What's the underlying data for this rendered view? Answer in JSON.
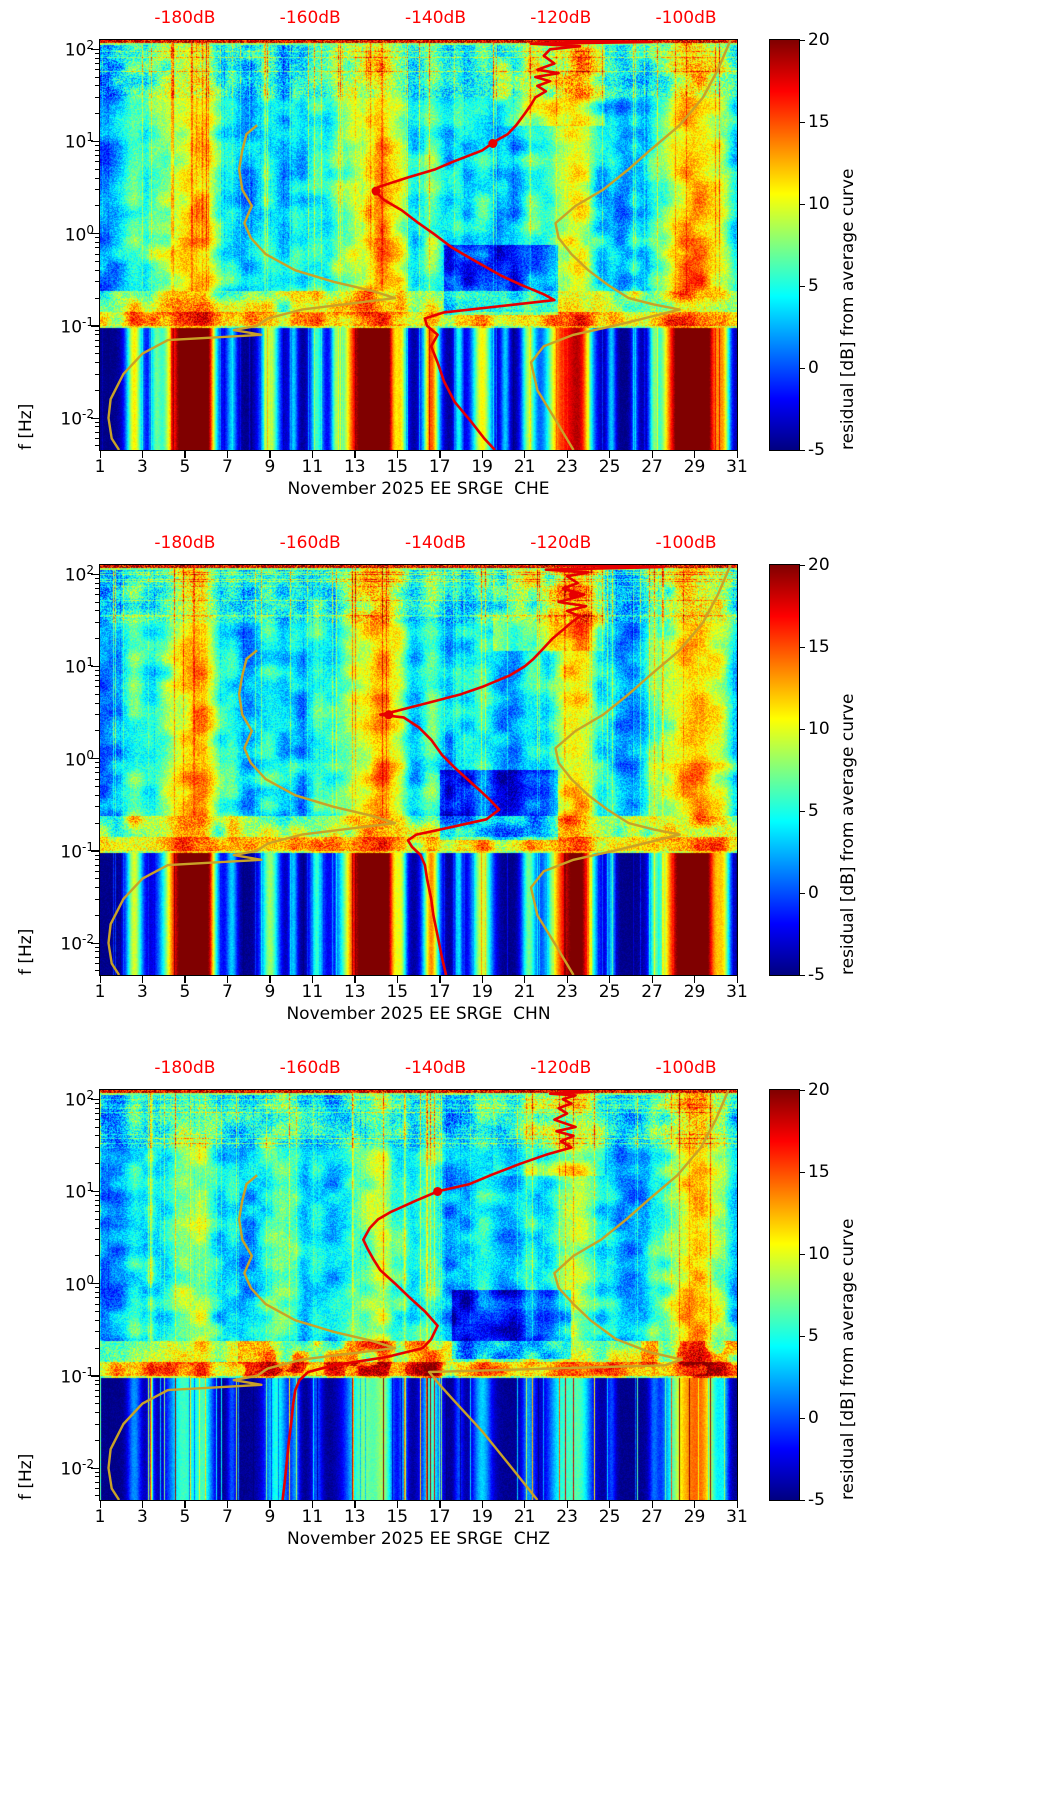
{
  "figure": {
    "colors": {
      "red_curve": "#e60000",
      "yellow_curve": "#c9a227",
      "top_axis_text": "#ff0000",
      "colorbar_low": "#000080",
      "colorbar_high": "#800000"
    }
  },
  "overlay_curves": {
    "nlnm": [
      [
        0.0045,
        1.9
      ],
      [
        0.006,
        1.55
      ],
      [
        0.01,
        1.4
      ],
      [
        0.016,
        1.5
      ],
      [
        0.03,
        2.1
      ],
      [
        0.05,
        3.0
      ],
      [
        0.07,
        4.2
      ],
      [
        0.08,
        8.6
      ],
      [
        0.09,
        7.3
      ],
      [
        0.1,
        8.4
      ],
      [
        0.12,
        8.9
      ],
      [
        0.15,
        10.5
      ],
      [
        0.2,
        14.9
      ],
      [
        0.24,
        13.8
      ],
      [
        0.3,
        12.0
      ],
      [
        0.4,
        10.2
      ],
      [
        0.6,
        8.8
      ],
      [
        0.9,
        8.1
      ],
      [
        1.3,
        7.8
      ],
      [
        2.0,
        8.15
      ],
      [
        3.0,
        7.7
      ],
      [
        5.0,
        7.55
      ],
      [
        8.0,
        7.7
      ],
      [
        12.0,
        7.9
      ],
      [
        15.0,
        8.4
      ]
    ],
    "nhnm": [
      [
        0.0045,
        23.3
      ],
      [
        0.01,
        22.4
      ],
      [
        0.02,
        21.6
      ],
      [
        0.04,
        21.3
      ],
      [
        0.06,
        21.9
      ],
      [
        0.08,
        23.3
      ],
      [
        0.1,
        25.2
      ],
      [
        0.12,
        26.6
      ],
      [
        0.15,
        28.3
      ],
      [
        0.17,
        27.1
      ],
      [
        0.2,
        25.9
      ],
      [
        0.28,
        24.9
      ],
      [
        0.4,
        24.0
      ],
      [
        0.6,
        23.2
      ],
      [
        0.9,
        22.6
      ],
      [
        1.3,
        22.45
      ],
      [
        2.0,
        23.4
      ],
      [
        3.0,
        24.7
      ],
      [
        5.0,
        25.9
      ],
      [
        8.0,
        26.9
      ],
      [
        15.0,
        28.3
      ],
      [
        30.0,
        29.4
      ],
      [
        60.0,
        30.1
      ],
      [
        126.0,
        30.7
      ]
    ],
    "nhnm_chz": [
      [
        0.0045,
        21.6
      ],
      [
        0.01,
        20.4
      ],
      [
        0.025,
        19.0
      ],
      [
        0.05,
        17.8
      ],
      [
        0.08,
        17.0
      ],
      [
        0.11,
        16.5
      ],
      [
        0.13,
        27.6
      ],
      [
        0.15,
        28.4
      ],
      [
        0.18,
        26.9
      ],
      [
        0.25,
        25.3
      ],
      [
        0.4,
        24.1
      ],
      [
        0.6,
        23.3
      ],
      [
        0.9,
        22.6
      ],
      [
        1.3,
        22.4
      ],
      [
        2.0,
        23.3
      ],
      [
        3.0,
        24.6
      ],
      [
        5.0,
        25.8
      ],
      [
        8.0,
        26.8
      ],
      [
        15.0,
        28.2
      ],
      [
        30.0,
        29.3
      ],
      [
        60.0,
        30.0
      ],
      [
        126.0,
        30.6
      ]
    ],
    "red_che": [
      [
        126,
        21.6
      ],
      [
        120,
        27.0
      ],
      [
        115,
        21.3
      ],
      [
        108,
        23.6
      ],
      [
        100,
        22.2
      ],
      [
        85,
        21.9
      ],
      [
        70,
        22.4
      ],
      [
        60,
        21.6
      ],
      [
        55,
        22.6
      ],
      [
        50,
        21.5
      ],
      [
        45,
        22.2
      ],
      [
        40,
        21.6
      ],
      [
        35,
        22.0
      ],
      [
        30,
        21.5
      ],
      [
        25,
        21.3
      ],
      [
        20,
        21.0
      ],
      [
        15,
        20.6
      ],
      [
        12,
        20.2
      ],
      [
        10,
        19.6
      ],
      [
        8,
        19.0
      ],
      [
        6,
        17.6
      ],
      [
        5,
        16.8
      ],
      [
        4,
        15.4
      ],
      [
        3.2,
        14.1
      ],
      [
        2.8,
        14.0
      ],
      [
        2.3,
        14.4
      ],
      [
        1.8,
        15.2
      ],
      [
        1.3,
        16.0
      ],
      [
        1.0,
        16.7
      ],
      [
        0.7,
        17.6
      ],
      [
        0.5,
        18.7
      ],
      [
        0.35,
        19.9
      ],
      [
        0.28,
        20.8
      ],
      [
        0.22,
        21.9
      ],
      [
        0.19,
        22.4
      ],
      [
        0.16,
        19.5
      ],
      [
        0.14,
        17.2
      ],
      [
        0.12,
        16.3
      ],
      [
        0.1,
        16.4
      ],
      [
        0.08,
        16.9
      ],
      [
        0.06,
        16.6
      ],
      [
        0.04,
        16.9
      ],
      [
        0.025,
        17.2
      ],
      [
        0.015,
        17.7
      ],
      [
        0.009,
        18.5
      ],
      [
        0.006,
        19.1
      ],
      [
        0.0045,
        19.6
      ]
    ],
    "red_chn": [
      [
        126,
        22.5
      ],
      [
        120,
        27.5
      ],
      [
        112,
        22.0
      ],
      [
        105,
        24.0
      ],
      [
        95,
        23.0
      ],
      [
        80,
        23.5
      ],
      [
        70,
        22.8
      ],
      [
        60,
        23.8
      ],
      [
        50,
        22.6
      ],
      [
        45,
        23.9
      ],
      [
        40,
        23.0
      ],
      [
        35,
        23.6
      ],
      [
        30,
        23.2
      ],
      [
        25,
        22.8
      ],
      [
        20,
        22.3
      ],
      [
        15,
        21.8
      ],
      [
        12,
        21.4
      ],
      [
        10,
        21.0
      ],
      [
        8,
        20.3
      ],
      [
        6,
        19.0
      ],
      [
        5,
        18.0
      ],
      [
        4,
        16.4
      ],
      [
        3.3,
        15.0
      ],
      [
        3.0,
        14.2
      ],
      [
        2.8,
        15.3
      ],
      [
        2.2,
        16.0
      ],
      [
        1.6,
        16.6
      ],
      [
        1.1,
        17.1
      ],
      [
        0.8,
        17.7
      ],
      [
        0.6,
        18.3
      ],
      [
        0.45,
        18.9
      ],
      [
        0.35,
        19.4
      ],
      [
        0.28,
        19.8
      ],
      [
        0.22,
        19.2
      ],
      [
        0.18,
        17.5
      ],
      [
        0.15,
        15.9
      ],
      [
        0.13,
        15.5
      ],
      [
        0.11,
        15.7
      ],
      [
        0.09,
        16.1
      ],
      [
        0.07,
        16.3
      ],
      [
        0.05,
        16.4
      ],
      [
        0.03,
        16.6
      ],
      [
        0.02,
        16.7
      ],
      [
        0.012,
        16.9
      ],
      [
        0.007,
        17.1
      ],
      [
        0.0045,
        17.3
      ]
    ],
    "red_chz": [
      [
        126,
        22.6
      ],
      [
        120,
        24.0
      ],
      [
        115,
        22.2
      ],
      [
        110,
        23.4
      ],
      [
        100,
        22.8
      ],
      [
        90,
        23.2
      ],
      [
        80,
        22.6
      ],
      [
        70,
        23.0
      ],
      [
        60,
        22.4
      ],
      [
        50,
        23.4
      ],
      [
        45,
        22.5
      ],
      [
        40,
        23.3
      ],
      [
        35,
        22.7
      ],
      [
        30,
        23.2
      ],
      [
        25,
        22.0
      ],
      [
        20,
        20.8
      ],
      [
        15,
        19.4
      ],
      [
        12,
        18.4
      ],
      [
        10,
        16.9
      ],
      [
        8,
        15.9
      ],
      [
        6,
        14.7
      ],
      [
        5,
        14.1
      ],
      [
        4,
        13.7
      ],
      [
        3,
        13.4
      ],
      [
        2.4,
        13.6
      ],
      [
        1.8,
        13.9
      ],
      [
        1.4,
        14.2
      ],
      [
        1.0,
        14.9
      ],
      [
        0.7,
        15.6
      ],
      [
        0.5,
        16.3
      ],
      [
        0.35,
        16.9
      ],
      [
        0.25,
        16.6
      ],
      [
        0.2,
        16.2
      ],
      [
        0.16,
        14.5
      ],
      [
        0.13,
        12.0
      ],
      [
        0.11,
        10.8
      ],
      [
        0.09,
        10.4
      ],
      [
        0.07,
        10.2
      ],
      [
        0.05,
        10.1
      ],
      [
        0.03,
        10.0
      ],
      [
        0.02,
        9.9
      ],
      [
        0.012,
        9.8
      ],
      [
        0.007,
        9.7
      ],
      [
        0.0045,
        9.6
      ]
    ]
  },
  "chart_data": [
    {
      "type": "heatmap",
      "station_channel": "CHE",
      "title": "November 2025 EE SRGE  CHE",
      "ylabel": "f [Hz]",
      "y_scale": "log",
      "y_range": [
        0.0045,
        126
      ],
      "y_tick_base": "10",
      "y_tick_exps": [
        2,
        1,
        0,
        -1,
        -2
      ],
      "x_range": [
        1,
        31
      ],
      "x_ticks": [
        1,
        3,
        5,
        7,
        9,
        11,
        13,
        15,
        17,
        19,
        21,
        23,
        25,
        27,
        29,
        31
      ],
      "top_axis": {
        "labels": [
          "-180dB",
          "-160dB",
          "-140dB",
          "-120dB",
          "-100dB"
        ],
        "positions_day": [
          5.0,
          10.9,
          16.8,
          22.7,
          28.6
        ]
      },
      "colorbar": {
        "label": "residual [dB] from average curve",
        "range": [
          -5,
          20
        ],
        "ticks": [
          20,
          15,
          10,
          5,
          0,
          -5
        ],
        "colormap": "jet"
      },
      "overlays": {
        "red_curve": "red_che",
        "nlnm": "nlnm",
        "nhnm": "nhnm",
        "markers": [
          [
            2.9,
            14.0
          ],
          [
            9.5,
            19.5
          ]
        ]
      },
      "texture": {
        "seed": 11,
        "lowf_gain": 1.0,
        "line_gain": 0.35,
        "band_line": 3.0,
        "band_boost": 0,
        "bb": [
          0,
          0,
          99
        ],
        "upper_blob": 3.5,
        "hole": [
          17.2,
          22.6,
          0.13,
          0.75
        ],
        "stripes": [
          [
            2.6,
            0.22,
            0.6
          ],
          [
            3.6,
            0.15,
            0.3
          ],
          [
            4.9,
            0.5,
            1.0
          ],
          [
            5.9,
            0.3,
            0.9
          ],
          [
            7.2,
            0.15,
            0.3
          ],
          [
            9.0,
            0.25,
            0.55
          ],
          [
            10.1,
            0.12,
            0.3
          ],
          [
            11.2,
            0.18,
            0.4
          ],
          [
            12.1,
            0.12,
            0.3
          ],
          [
            13.4,
            0.55,
            1.0
          ],
          [
            14.4,
            0.3,
            0.85
          ],
          [
            15.2,
            0.15,
            0.45
          ],
          [
            16.6,
            0.22,
            0.75
          ],
          [
            17.9,
            0.12,
            0.35
          ],
          [
            19.0,
            0.28,
            0.6
          ],
          [
            20.1,
            0.12,
            0.3
          ],
          [
            21.2,
            0.2,
            0.5
          ],
          [
            22.8,
            0.45,
            0.75
          ],
          [
            23.7,
            0.3,
            0.6
          ],
          [
            25.1,
            0.12,
            0.3
          ],
          [
            26.2,
            0.1,
            0.22
          ],
          [
            27.1,
            0.12,
            0.28
          ],
          [
            28.4,
            0.55,
            1.0
          ],
          [
            29.5,
            0.4,
            0.85
          ],
          [
            30.4,
            0.18,
            0.45
          ]
        ]
      }
    },
    {
      "type": "heatmap",
      "station_channel": "CHN",
      "title": "November 2025 EE SRGE  CHN",
      "ylabel": "f [Hz]",
      "y_scale": "log",
      "y_range": [
        0.0045,
        126
      ],
      "y_tick_base": "10",
      "y_tick_exps": [
        2,
        1,
        0,
        -1,
        -2
      ],
      "x_range": [
        1,
        31
      ],
      "x_ticks": [
        1,
        3,
        5,
        7,
        9,
        11,
        13,
        15,
        17,
        19,
        21,
        23,
        25,
        27,
        29,
        31
      ],
      "top_axis": {
        "labels": [
          "-180dB",
          "-160dB",
          "-140dB",
          "-120dB",
          "-100dB"
        ],
        "positions_day": [
          5.0,
          10.9,
          16.8,
          22.7,
          28.6
        ]
      },
      "colorbar": {
        "label": "residual [dB] from average curve",
        "range": [
          -5,
          20
        ],
        "ticks": [
          20,
          15,
          10,
          5,
          0,
          -5
        ],
        "colormap": "jet"
      },
      "overlays": {
        "red_curve": "red_chn",
        "nlnm": "nlnm",
        "nhnm": "nhnm",
        "markers": [
          [
            3.0,
            14.6
          ],
          [
            60,
            23.3
          ]
        ]
      },
      "texture": {
        "seed": 47,
        "lowf_gain": 1.0,
        "line_gain": 0.35,
        "band_line": 3.0,
        "band_boost": 0,
        "bb": [
          0,
          0,
          99
        ],
        "upper_blob": 4.0,
        "hole": [
          17.0,
          22.6,
          0.13,
          0.75
        ],
        "stripes": [
          [
            2.6,
            0.22,
            0.55
          ],
          [
            4.9,
            0.5,
            1.0
          ],
          [
            5.9,
            0.3,
            0.9
          ],
          [
            7.2,
            0.15,
            0.3
          ],
          [
            9.0,
            0.25,
            0.5
          ],
          [
            10.1,
            0.12,
            0.3
          ],
          [
            11.2,
            0.18,
            0.38
          ],
          [
            13.4,
            0.55,
            1.0
          ],
          [
            14.4,
            0.3,
            0.8
          ],
          [
            15.2,
            0.15,
            0.4
          ],
          [
            16.6,
            0.22,
            0.7
          ],
          [
            17.9,
            0.12,
            0.32
          ],
          [
            19.0,
            0.28,
            0.55
          ],
          [
            21.2,
            0.2,
            0.45
          ],
          [
            22.8,
            0.45,
            0.7
          ],
          [
            23.7,
            0.35,
            0.75
          ],
          [
            25.1,
            0.12,
            0.3
          ],
          [
            27.1,
            0.12,
            0.26
          ],
          [
            28.4,
            0.55,
            0.95
          ],
          [
            29.5,
            0.4,
            0.8
          ],
          [
            30.4,
            0.18,
            0.4
          ]
        ]
      }
    },
    {
      "type": "heatmap",
      "station_channel": "CHZ",
      "title": "November 2025 EE SRGE  CHZ",
      "ylabel": "f [Hz]",
      "y_scale": "log",
      "y_range": [
        0.0045,
        126
      ],
      "y_tick_base": "10",
      "y_tick_exps": [
        2,
        1,
        0,
        -1,
        -2
      ],
      "x_range": [
        1,
        31
      ],
      "x_ticks": [
        1,
        3,
        5,
        7,
        9,
        11,
        13,
        15,
        17,
        19,
        21,
        23,
        25,
        27,
        29,
        31
      ],
      "top_axis": {
        "labels": [
          "-180dB",
          "-160dB",
          "-140dB",
          "-120dB",
          "-100dB"
        ],
        "positions_day": [
          5.0,
          10.9,
          16.8,
          22.7,
          28.6
        ]
      },
      "colorbar": {
        "label": "residual [dB] from average curve",
        "range": [
          -5,
          20
        ],
        "ticks": [
          20,
          15,
          10,
          5,
          0,
          -5
        ],
        "colormap": "jet"
      },
      "overlays": {
        "red_curve": "red_chz",
        "nlnm": "nlnm",
        "nhnm": "nhnm_chz",
        "markers": [
          [
            10,
            16.9
          ]
        ]
      },
      "texture": {
        "seed": 83,
        "lowf_gain": 0.62,
        "line_gain": 1.3,
        "band_line": 4.5,
        "band_boost": 3.0,
        "bb": [
          7.5,
          18,
          26.5
        ],
        "upper_blob": 3.0,
        "hole": [
          17.6,
          23.2,
          0.15,
          0.85
        ],
        "stripes": [
          [
            2.6,
            0.18,
            0.4
          ],
          [
            3.4,
            0.1,
            0.3
          ],
          [
            4.9,
            0.4,
            0.65
          ],
          [
            5.9,
            0.25,
            0.55
          ],
          [
            7.2,
            0.12,
            0.3
          ],
          [
            9.3,
            0.3,
            0.6
          ],
          [
            10.2,
            0.12,
            0.35
          ],
          [
            11.2,
            0.15,
            0.3
          ],
          [
            13.4,
            0.45,
            0.75
          ],
          [
            14.4,
            0.25,
            0.6
          ],
          [
            15.3,
            0.12,
            0.4
          ],
          [
            16.6,
            0.25,
            0.65
          ],
          [
            17.9,
            0.12,
            0.3
          ],
          [
            19.0,
            0.25,
            0.5
          ],
          [
            21.2,
            0.18,
            0.4
          ],
          [
            22.8,
            0.4,
            0.6
          ],
          [
            23.7,
            0.3,
            0.5
          ],
          [
            25.1,
            0.12,
            0.28
          ],
          [
            27.1,
            0.12,
            0.25
          ],
          [
            28.5,
            0.5,
            0.9
          ],
          [
            29.5,
            0.4,
            0.8
          ],
          [
            30.4,
            0.15,
            0.35
          ]
        ]
      }
    }
  ]
}
